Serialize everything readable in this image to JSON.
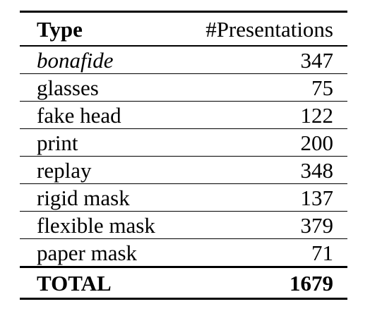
{
  "table": {
    "headers": {
      "type": "Type",
      "presentations": "#Presentations"
    },
    "rows": [
      {
        "type": "bonafide",
        "presentations": "347",
        "italic": true
      },
      {
        "type": "glasses",
        "presentations": "75"
      },
      {
        "type": "fake head",
        "presentations": "122"
      },
      {
        "type": "print",
        "presentations": "200"
      },
      {
        "type": "replay",
        "presentations": "348"
      },
      {
        "type": "rigid mask",
        "presentations": "137"
      },
      {
        "type": "flexible mask",
        "presentations": "379"
      },
      {
        "type": "paper mask",
        "presentations": "71"
      }
    ],
    "total": {
      "type": "TOTAL",
      "presentations": "1679"
    }
  }
}
